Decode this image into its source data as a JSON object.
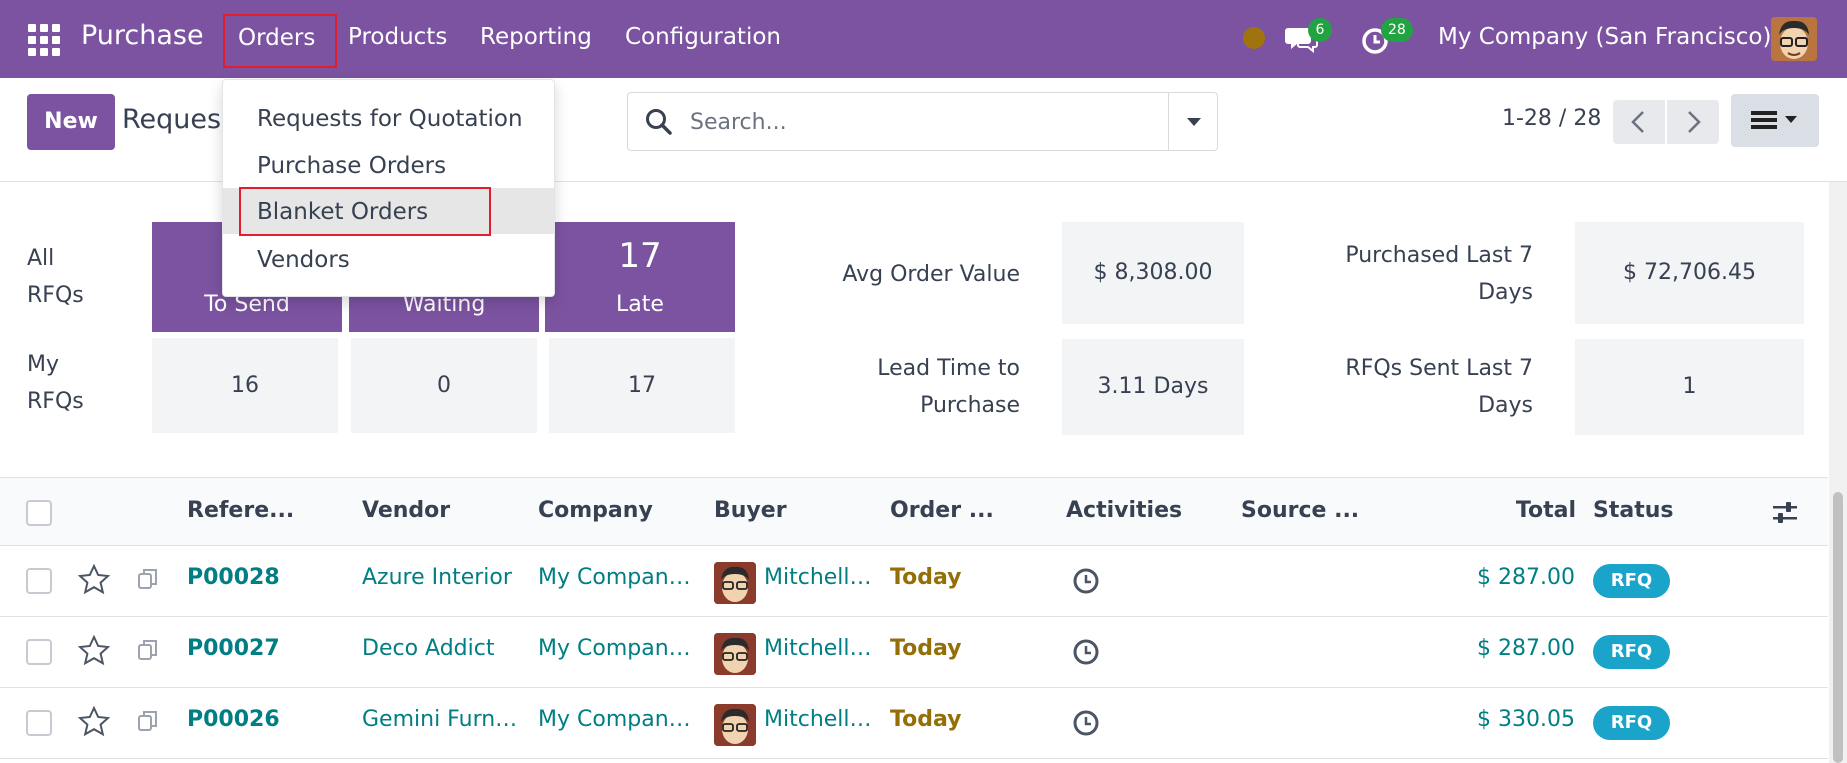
{
  "navbar": {
    "app_name": "Purchase",
    "menus": [
      "Orders",
      "Products",
      "Reporting",
      "Configuration"
    ],
    "messages_count": "6",
    "activities_count": "28",
    "company": "My Company (San Francisco)"
  },
  "dropdown": {
    "items": [
      "Requests for Quotation",
      "Purchase Orders",
      "Blanket Orders",
      "Vendors"
    ]
  },
  "control": {
    "new_label": "New",
    "page_title": "Reques",
    "search_placeholder": "Search...",
    "pager": "1-28 / 28"
  },
  "dashboard": {
    "all_label": "All\nRFQs",
    "my_label": "My\nRFQs",
    "tiles": [
      {
        "caption": "To Send",
        "all": "",
        "mine": "16"
      },
      {
        "caption": "Waiting",
        "all": "",
        "mine": "0"
      },
      {
        "caption": "Late",
        "all": "17",
        "mine": "17"
      }
    ],
    "kpis": [
      {
        "label": "Avg Order Value",
        "value": "$ 8,308.00"
      },
      {
        "label": "Purchased Last 7\nDays",
        "value": "$ 72,706.45"
      },
      {
        "label": "Lead Time to\nPurchase",
        "value": "3.11 Days"
      },
      {
        "label": "RFQs Sent Last 7\nDays",
        "value": "1"
      }
    ]
  },
  "list": {
    "columns": [
      "Refere...",
      "Vendor",
      "Company",
      "Buyer",
      "Order ...",
      "Activities",
      "Source ...",
      "Total",
      "Status"
    ],
    "rows": [
      {
        "ref": "P00028",
        "vendor": "Azure Interior",
        "company": "My Company (San Francisco)",
        "buyer": "Mitchell Admin",
        "date": "Today",
        "total": "$ 287.00",
        "status": "RFQ"
      },
      {
        "ref": "P00027",
        "vendor": "Deco Addict",
        "company": "My Company (San Francisco)",
        "buyer": "Mitchell Admin",
        "date": "Today",
        "total": "$ 287.00",
        "status": "RFQ"
      },
      {
        "ref": "P00026",
        "vendor": "Gemini Furniture",
        "company": "My Company (San Francisco)",
        "buyer": "Mitchell Admin",
        "date": "Today",
        "total": "$ 330.05",
        "status": "RFQ"
      }
    ]
  },
  "colors": {
    "brand": "#7b53a0",
    "link": "#017e84",
    "date_warning": "#946f08",
    "status_rfq": "#1aa4c9",
    "badge": "#22a341"
  }
}
